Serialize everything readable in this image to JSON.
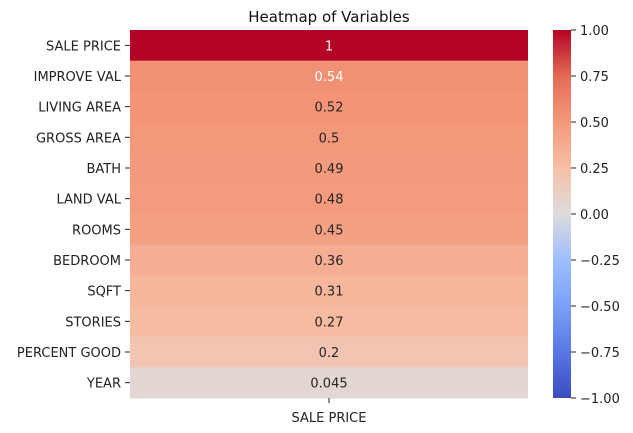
{
  "chart_data": {
    "type": "heatmap",
    "title": "Heatmap of Variables",
    "columns": [
      "SALE PRICE"
    ],
    "rows": [
      "SALE PRICE",
      "IMPROVE VAL",
      "LIVING AREA",
      "GROSS AREA",
      "BATH",
      "LAND VAL",
      "ROOMS",
      "BEDROOM",
      "SQFT",
      "STORIES",
      "PERCENT GOOD",
      "YEAR"
    ],
    "values": [
      1.0,
      0.54,
      0.52,
      0.5,
      0.49,
      0.48,
      0.45,
      0.36,
      0.31,
      0.27,
      0.2,
      0.045
    ],
    "value_labels": [
      "1",
      "0.54",
      "0.52",
      "0.5",
      "0.49",
      "0.48",
      "0.45",
      "0.36",
      "0.31",
      "0.27",
      "0.2",
      "0.045"
    ],
    "colormap": "coolwarm",
    "vmin": -1.0,
    "vmax": 1.0,
    "colorbar_ticks": [
      1.0,
      0.75,
      0.5,
      0.25,
      0.0,
      -0.25,
      -0.5,
      -0.75,
      -1.0
    ],
    "colorbar_tick_labels": [
      "1.00",
      "0.75",
      "0.50",
      "0.25",
      "0.00",
      "−0.25",
      "−0.50",
      "−0.75",
      "−1.00"
    ]
  }
}
